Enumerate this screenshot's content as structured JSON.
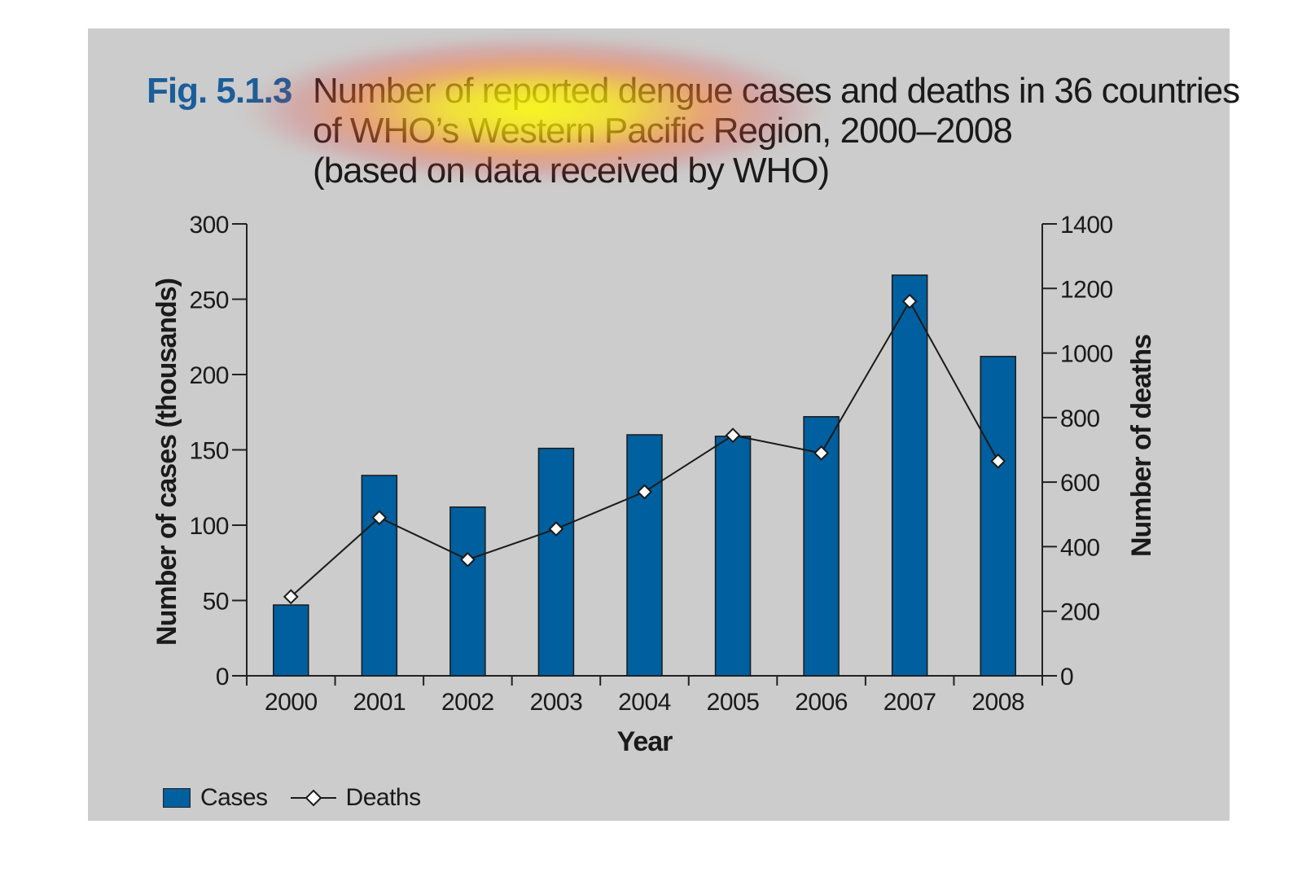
{
  "figure": {
    "label": "Fig. 5.1.3",
    "title_lines": [
      "Number of reported dengue cases and deaths in 36 countries",
      "of WHO’s Western Pacific Region, 2000–2008",
      "(based on data received by WHO)"
    ]
  },
  "colors": {
    "bar": "#005f9e",
    "panel": "#cccccc",
    "line": "#1a1a1a",
    "marker_fill": "#ffffff"
  },
  "chart_data": {
    "type": "bar",
    "categories": [
      "2000",
      "2001",
      "2002",
      "2003",
      "2004",
      "2005",
      "2006",
      "2007",
      "2008"
    ],
    "series": [
      {
        "name": "Cases",
        "type": "bar",
        "axis": "left",
        "values": [
          47,
          133,
          112,
          151,
          160,
          159,
          172,
          266,
          212
        ]
      },
      {
        "name": "Deaths",
        "type": "line",
        "axis": "right",
        "marker": "diamond",
        "values": [
          245,
          490,
          360,
          455,
          570,
          745,
          690,
          1160,
          665
        ]
      }
    ],
    "xlabel": "Year",
    "ylabel": "Number of cases (thousands)",
    "y2label": "Number of deaths",
    "ylim": [
      0,
      300
    ],
    "y2lim": [
      0,
      1400
    ],
    "yticks": [
      "0",
      "50",
      "100",
      "150",
      "200",
      "250",
      "300"
    ],
    "y2ticks": [
      "0",
      "200",
      "400",
      "600",
      "800",
      "1000",
      "1200",
      "1400"
    ],
    "grid": false,
    "legend": "bottom-left"
  }
}
